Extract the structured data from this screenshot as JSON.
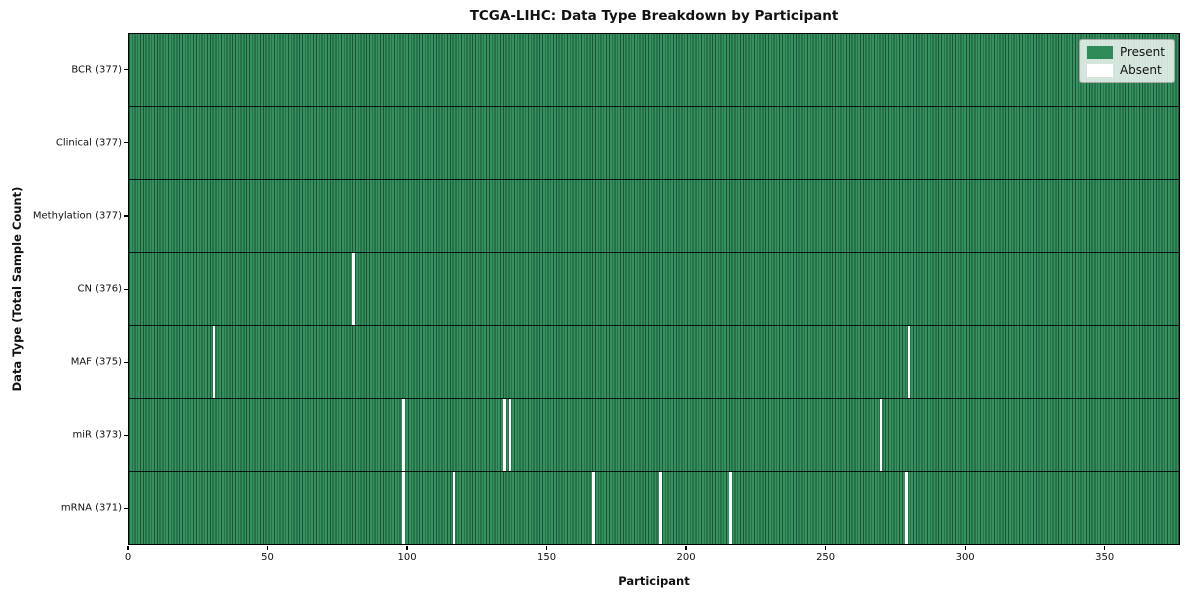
{
  "title": "TCGA-LIHC: Data Type Breakdown by Participant",
  "x_axis_label": "Participant",
  "y_axis_label": "Data Type (Total Sample Count)",
  "colors": {
    "present": "#2e8b57",
    "absent": "#ffffff",
    "mesh_line": "#1c5435",
    "row_separator": "#000000",
    "legend_border": "#a8a8a8"
  },
  "legend": {
    "entries": [
      {
        "label": "Present",
        "color": "#2e8b57"
      },
      {
        "label": "Absent",
        "color": "#ffffff"
      }
    ]
  },
  "chart_data": {
    "type": "heatmap",
    "title": "TCGA-LIHC: Data Type Breakdown by Participant",
    "xlabel": "Participant",
    "ylabel": "Data Type (Total Sample Count)",
    "n_participants": 377,
    "x_range": [
      0,
      377
    ],
    "x_ticks": [
      0,
      50,
      100,
      150,
      200,
      250,
      300,
      350
    ],
    "grid": false,
    "legend_position": "upper right",
    "value_encoding": {
      "present": 1,
      "absent": 0
    },
    "rows": [
      {
        "label": "BCR (377)",
        "data_type": "BCR",
        "present_count": 377,
        "absent_participants": []
      },
      {
        "label": "Clinical (377)",
        "data_type": "Clinical",
        "present_count": 377,
        "absent_participants": []
      },
      {
        "label": "Methylation (377)",
        "data_type": "Methylation",
        "present_count": 377,
        "absent_participants": []
      },
      {
        "label": "CN (376)",
        "data_type": "CN",
        "present_count": 376,
        "absent_participants": [
          80
        ]
      },
      {
        "label": "MAF (375)",
        "data_type": "MAF",
        "present_count": 375,
        "absent_participants": [
          30,
          279
        ]
      },
      {
        "label": "miR (373)",
        "data_type": "miR",
        "present_count": 373,
        "absent_participants": [
          98,
          134,
          136,
          269
        ]
      },
      {
        "label": "mRNA (371)",
        "data_type": "mRNA",
        "present_count": 371,
        "absent_participants": [
          98,
          116,
          166,
          190,
          215,
          278
        ]
      }
    ]
  }
}
